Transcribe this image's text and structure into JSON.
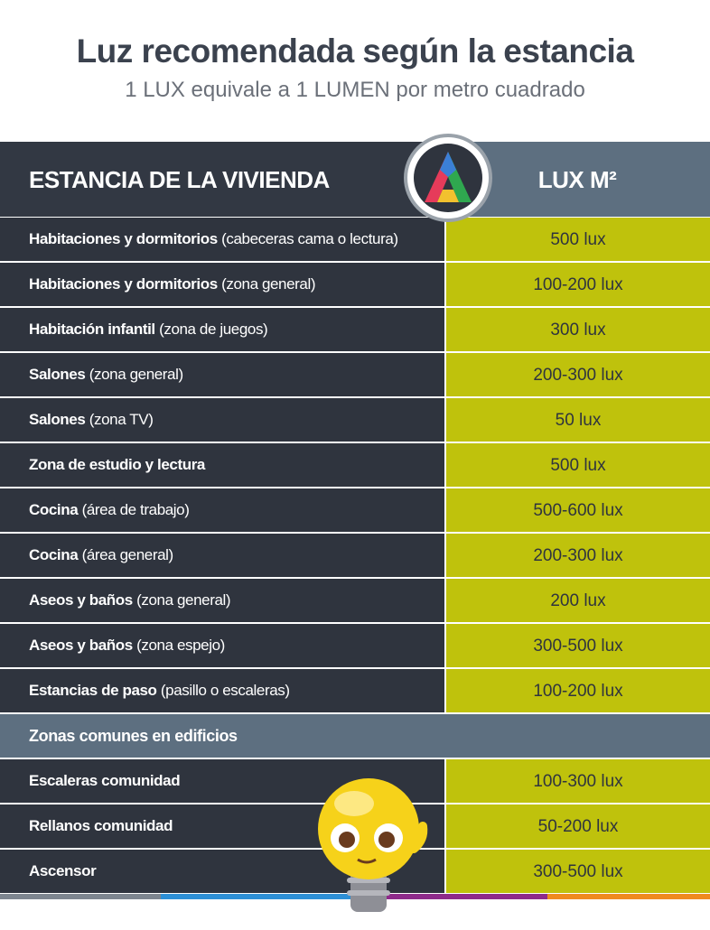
{
  "header": {
    "title": "Luz recomendada según la estancia",
    "subtitle": "1 LUX equivale a 1 LUMEN por metro cuadrado"
  },
  "table": {
    "columns": [
      "ESTANCIA DE LA VIVIENDA",
      "LUX M²"
    ],
    "rows": [
      {
        "name": "Habitaciones y dormitorios",
        "detail": "(cabeceras cama o lectura)",
        "value": "500 lux"
      },
      {
        "name": "Habitaciones y dormitorios",
        "detail": "(zona general)",
        "value": "100-200 lux"
      },
      {
        "name": "Habitación infantil",
        "detail": "(zona de juegos)",
        "value": "300 lux"
      },
      {
        "name": "Salones",
        "detail": "(zona general)",
        "value": "200-300 lux"
      },
      {
        "name": "Salones",
        "detail": "(zona TV)",
        "value": "50 lux"
      },
      {
        "name": "Zona de estudio y lectura",
        "value": "500 lux"
      },
      {
        "name": "Cocina",
        "detail": "(área de trabajo)",
        "value": "500-600 lux"
      },
      {
        "name": "Cocina",
        "detail": "(área general)",
        "value": "200-300 lux"
      },
      {
        "name": "Aseos y baños",
        "detail": "(zona general)",
        "value": "200 lux"
      },
      {
        "name": "Aseos y baños",
        "detail": "(zona espejo)",
        "value": "300-500 lux"
      },
      {
        "name": "Estancias de paso",
        "detail": "(pasillo o escaleras)",
        "value": "100-200 lux"
      },
      {
        "section": "Zonas comunes en edificios"
      },
      {
        "name": "Escaleras comunidad",
        "value": "100-300 lux"
      },
      {
        "name": "Rellanos comunidad",
        "value": "50-200 lux"
      },
      {
        "name": "Ascensor",
        "value": "300-500 lux"
      }
    ]
  }
}
